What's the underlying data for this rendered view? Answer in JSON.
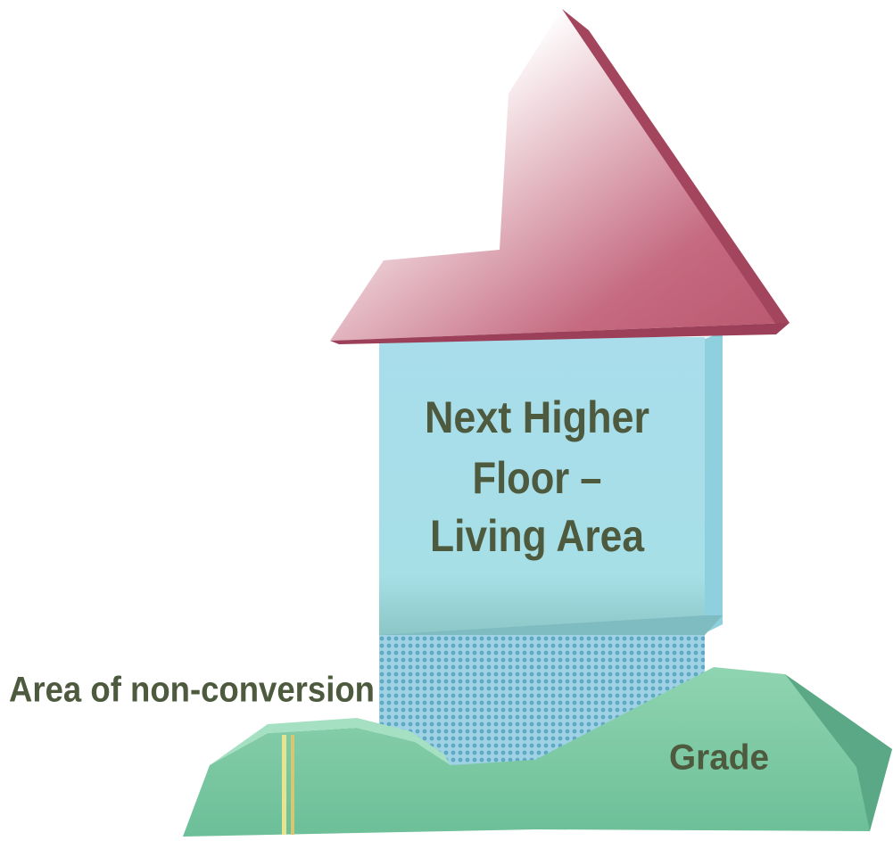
{
  "building": {
    "label_lines": [
      "Next Higher",
      "Floor –",
      "Living Area"
    ]
  },
  "non_conversion_label": "Area of non-conversion",
  "grade_label": "Grade"
}
